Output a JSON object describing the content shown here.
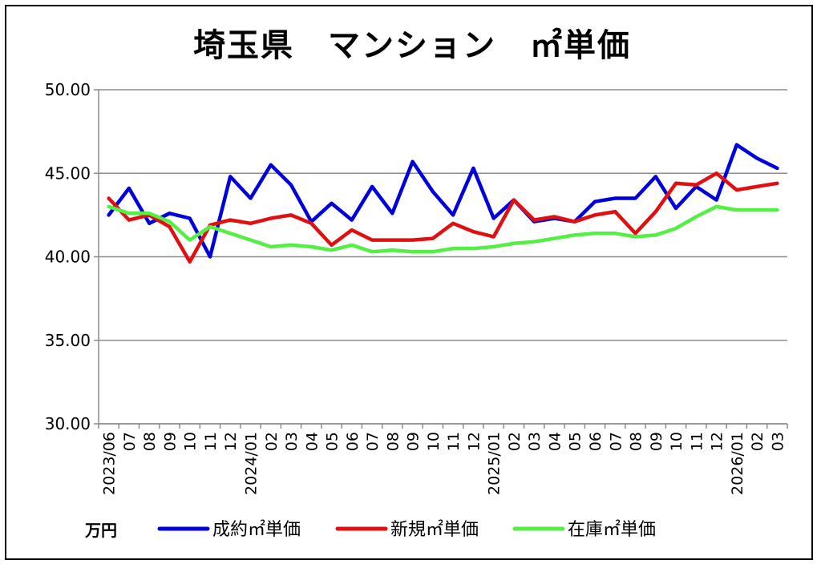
{
  "chart_data": {
    "type": "line",
    "title": "埼玉県　マンション　㎡単価",
    "unit_label": "万円",
    "ylim": [
      30,
      50
    ],
    "yticks": [
      "30.00",
      "35.00",
      "40.00",
      "45.00",
      "50.00"
    ],
    "x": [
      "2023/06",
      "07",
      "08",
      "09",
      "10",
      "11",
      "12",
      "2024/01",
      "02",
      "03",
      "04",
      "05",
      "06",
      "07",
      "08",
      "09",
      "10",
      "11",
      "12",
      "2025/01",
      "02",
      "03",
      "04",
      "05",
      "06",
      "07",
      "08",
      "09",
      "10",
      "11",
      "12",
      "2026/01",
      "02",
      "03"
    ],
    "grid": true,
    "legend_position": "bottom",
    "series": [
      {
        "name": "成約㎡単価",
        "color": "#0000dd",
        "values": [
          42.5,
          44.1,
          42.0,
          42.6,
          42.3,
          40.0,
          44.8,
          43.5,
          45.5,
          44.3,
          42.1,
          43.2,
          42.2,
          44.2,
          42.6,
          45.7,
          43.9,
          42.5,
          45.3,
          42.3,
          43.4,
          42.1,
          42.3,
          42.1,
          43.3,
          43.5,
          43.5,
          44.8,
          42.9,
          44.2,
          43.4,
          46.7,
          45.9,
          45.3
        ]
      },
      {
        "name": "新規㎡単価",
        "color": "#e01010",
        "values": [
          43.5,
          42.2,
          42.5,
          41.8,
          39.7,
          41.9,
          42.2,
          42.0,
          42.3,
          42.5,
          42.0,
          40.7,
          41.6,
          41.0,
          41.0,
          41.0,
          41.1,
          42.0,
          41.5,
          41.2,
          43.4,
          42.2,
          42.4,
          42.1,
          42.5,
          42.7,
          41.4,
          42.7,
          44.4,
          44.3,
          45.0,
          44.0,
          44.2,
          44.4
        ]
      },
      {
        "name": "在庫㎡単価",
        "color": "#55ee44",
        "values": [
          43.0,
          42.6,
          42.6,
          42.1,
          41.0,
          41.8,
          41.4,
          41.0,
          40.6,
          40.7,
          40.6,
          40.4,
          40.7,
          40.3,
          40.4,
          40.3,
          40.3,
          40.5,
          40.5,
          40.6,
          40.8,
          40.9,
          41.1,
          41.3,
          41.4,
          41.4,
          41.2,
          41.3,
          41.7,
          42.4,
          43.0,
          42.8,
          42.8,
          42.8
        ]
      }
    ]
  }
}
